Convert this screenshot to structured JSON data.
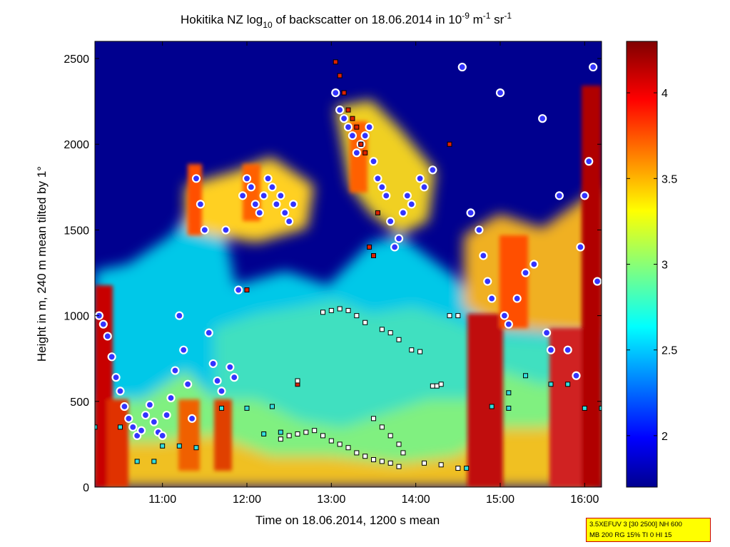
{
  "chart_data": {
    "type": "heatmap",
    "title": {
      "prefix": "Hokitika NZ log",
      "sub": "10",
      "middle": " of backscatter on 18.06.2014 in 10",
      "sup1": "-9",
      "mid2": " m",
      "sup2": "-1",
      "mid3": " sr",
      "sup3": "-1"
    },
    "xlabel": "Time on 18.06.2014, 1200 s mean",
    "ylabel": "Height in m, 240 m mean tilted by 1°",
    "x_ticks": [
      "11:00",
      "12:00",
      "13:00",
      "14:00",
      "15:00",
      "16:00"
    ],
    "x_tick_hours": [
      11,
      12,
      13,
      14,
      15,
      16
    ],
    "xlim_hours": [
      10.2,
      16.2
    ],
    "y_ticks": [
      "0",
      "500",
      "1000",
      "1500",
      "2000",
      "2500"
    ],
    "ylim": [
      0,
      2600
    ],
    "colorbar": {
      "ticks": [
        "2",
        "2.5",
        "3",
        "3.5",
        "4"
      ],
      "tick_values": [
        2,
        2.5,
        3,
        3.5,
        4
      ],
      "range": [
        1.7,
        4.3
      ],
      "colormap": "jet"
    },
    "cloud_layers": [
      {
        "name": "cloud base (circles)",
        "color": "#3333ff",
        "outline": "#ffffff",
        "points": [
          [
            10.25,
            1000
          ],
          [
            10.3,
            950
          ],
          [
            10.35,
            880
          ],
          [
            10.4,
            760
          ],
          [
            10.45,
            640
          ],
          [
            10.5,
            560
          ],
          [
            10.55,
            470
          ],
          [
            10.6,
            400
          ],
          [
            10.65,
            350
          ],
          [
            10.7,
            300
          ],
          [
            10.75,
            330
          ],
          [
            10.8,
            420
          ],
          [
            10.85,
            480
          ],
          [
            10.9,
            380
          ],
          [
            10.95,
            320
          ],
          [
            11.0,
            300
          ],
          [
            11.05,
            420
          ],
          [
            11.1,
            520
          ],
          [
            11.15,
            680
          ],
          [
            11.2,
            1000
          ],
          [
            11.25,
            800
          ],
          [
            11.3,
            600
          ],
          [
            11.35,
            400
          ],
          [
            11.4,
            1800
          ],
          [
            11.45,
            1650
          ],
          [
            11.5,
            1500
          ],
          [
            11.55,
            900
          ],
          [
            11.6,
            720
          ],
          [
            11.65,
            620
          ],
          [
            11.7,
            560
          ],
          [
            11.75,
            1500
          ],
          [
            11.8,
            700
          ],
          [
            11.85,
            640
          ],
          [
            11.9,
            1150
          ],
          [
            11.95,
            1700
          ],
          [
            12.0,
            1800
          ],
          [
            12.05,
            1750
          ],
          [
            12.1,
            1650
          ],
          [
            12.15,
            1600
          ],
          [
            12.2,
            1700
          ],
          [
            12.25,
            1800
          ],
          [
            12.3,
            1750
          ],
          [
            12.35,
            1650
          ],
          [
            12.4,
            1700
          ],
          [
            12.45,
            1600
          ],
          [
            12.5,
            1550
          ],
          [
            12.55,
            1650
          ],
          [
            13.05,
            2300
          ],
          [
            13.1,
            2200
          ],
          [
            13.15,
            2150
          ],
          [
            13.2,
            2100
          ],
          [
            13.25,
            2050
          ],
          [
            13.3,
            1950
          ],
          [
            13.35,
            2000
          ],
          [
            13.4,
            2050
          ],
          [
            13.45,
            2100
          ],
          [
            13.5,
            1900
          ],
          [
            13.55,
            1800
          ],
          [
            13.6,
            1750
          ],
          [
            13.65,
            1700
          ],
          [
            13.7,
            1550
          ],
          [
            13.75,
            1400
          ],
          [
            13.8,
            1450
          ],
          [
            13.85,
            1600
          ],
          [
            13.9,
            1700
          ],
          [
            13.95,
            1650
          ],
          [
            14.05,
            1800
          ],
          [
            14.1,
            1750
          ],
          [
            14.2,
            1850
          ],
          [
            14.55,
            2450
          ],
          [
            14.65,
            1600
          ],
          [
            14.75,
            1500
          ],
          [
            14.8,
            1350
          ],
          [
            14.85,
            1200
          ],
          [
            14.9,
            1100
          ],
          [
            15.0,
            2300
          ],
          [
            15.05,
            1000
          ],
          [
            15.1,
            950
          ],
          [
            15.2,
            1100
          ],
          [
            15.3,
            1250
          ],
          [
            15.4,
            1300
          ],
          [
            15.5,
            2150
          ],
          [
            15.55,
            900
          ],
          [
            15.6,
            800
          ],
          [
            15.7,
            1700
          ],
          [
            15.8,
            800
          ],
          [
            15.9,
            650
          ],
          [
            15.95,
            1400
          ],
          [
            16.0,
            1700
          ],
          [
            16.05,
            1900
          ],
          [
            16.1,
            2450
          ],
          [
            16.15,
            1200
          ]
        ]
      },
      {
        "name": "layer top (red squares)",
        "color": "#dd2200",
        "outline": "#000000",
        "points": [
          [
            13.05,
            2480
          ],
          [
            13.1,
            2400
          ],
          [
            13.15,
            2300
          ],
          [
            13.2,
            2200
          ],
          [
            13.25,
            2150
          ],
          [
            13.3,
            2100
          ],
          [
            13.35,
            2000
          ],
          [
            13.4,
            1950
          ],
          [
            13.45,
            1400
          ],
          [
            13.5,
            1350
          ],
          [
            13.55,
            1600
          ],
          [
            14.4,
            2000
          ],
          [
            12.0,
            1150
          ],
          [
            12.6,
            600
          ]
        ]
      },
      {
        "name": "layer base (white squares)",
        "color": "#ffffff",
        "outline": "#000000",
        "points": [
          [
            12.6,
            620
          ],
          [
            12.9,
            1020
          ],
          [
            13.0,
            1030
          ],
          [
            13.1,
            1040
          ],
          [
            13.2,
            1030
          ],
          [
            13.3,
            1000
          ],
          [
            13.4,
            960
          ],
          [
            13.6,
            920
          ],
          [
            13.7,
            900
          ],
          [
            13.8,
            860
          ],
          [
            13.95,
            800
          ],
          [
            14.05,
            790
          ],
          [
            14.2,
            590
          ],
          [
            14.25,
            590
          ],
          [
            14.3,
            600
          ],
          [
            14.4,
            1000
          ],
          [
            14.5,
            1000
          ],
          [
            12.4,
            280
          ],
          [
            12.5,
            300
          ],
          [
            12.6,
            310
          ],
          [
            12.7,
            320
          ],
          [
            12.8,
            330
          ],
          [
            12.9,
            300
          ],
          [
            13.0,
            270
          ],
          [
            13.1,
            250
          ],
          [
            13.2,
            230
          ],
          [
            13.3,
            200
          ],
          [
            13.4,
            180
          ],
          [
            13.5,
            160
          ],
          [
            13.6,
            150
          ],
          [
            13.7,
            140
          ],
          [
            13.8,
            120
          ],
          [
            14.1,
            140
          ],
          [
            14.3,
            130
          ],
          [
            14.5,
            110
          ],
          [
            13.5,
            400
          ],
          [
            13.6,
            350
          ],
          [
            13.7,
            300
          ],
          [
            13.8,
            250
          ],
          [
            13.85,
            200
          ]
        ]
      },
      {
        "name": "boundary layer (cyan squares)",
        "color": "#33dddd",
        "outline": "#000000",
        "points": [
          [
            10.2,
            350
          ],
          [
            10.5,
            350
          ],
          [
            10.7,
            150
          ],
          [
            10.9,
            150
          ],
          [
            11.0,
            240
          ],
          [
            11.2,
            240
          ],
          [
            11.4,
            230
          ],
          [
            11.7,
            460
          ],
          [
            12.0,
            460
          ],
          [
            12.3,
            470
          ],
          [
            12.2,
            310
          ],
          [
            12.4,
            320
          ],
          [
            14.9,
            470
          ],
          [
            15.1,
            460
          ],
          [
            15.3,
            650
          ],
          [
            15.6,
            600
          ],
          [
            15.8,
            600
          ],
          [
            16.0,
            460
          ],
          [
            16.2,
            460
          ],
          [
            15.1,
            550
          ],
          [
            14.6,
            110
          ]
        ]
      }
    ]
  },
  "infobox": {
    "line1": "3.5XEFUV 3 [30 2500] NH 600",
    "line2": "MB 200 RG 15% TI 0 HI 15"
  }
}
